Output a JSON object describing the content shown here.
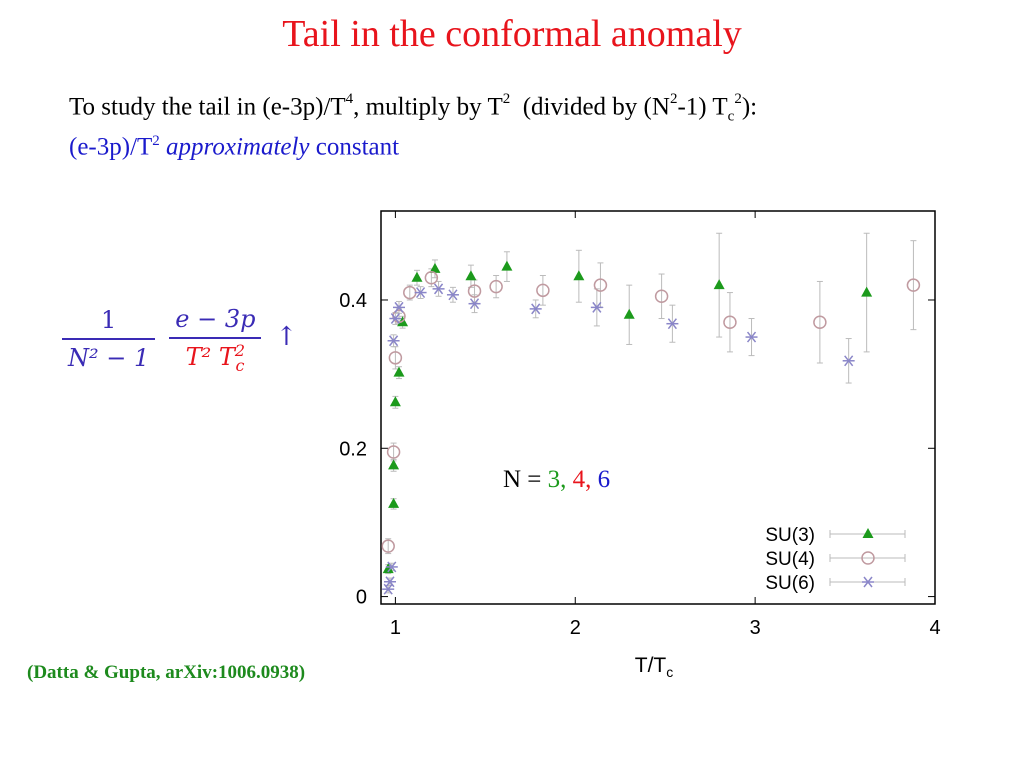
{
  "slide": {
    "title": "Tail in the conformal anomaly",
    "line1": {
      "part1": "To study the tail in (e-3p)/T",
      "sup_a": "4",
      "part2": ", multiply by T",
      "sup_b": "2",
      "part3": "  (divided by (N",
      "sup_c": "2",
      "part4": "-1) T",
      "sub_d": "c",
      "sup_e": "2",
      "part5": "):"
    },
    "line2": {
      "part1": "(e-3p)/T",
      "sup": "2",
      "italic": "approximately",
      "part2": " constant"
    },
    "formula": {
      "num_left": "1",
      "den_left": "N² − 1",
      "num_right": "e − 3p",
      "den_right": "T² T",
      "den_right_sub": "c",
      "den_right_sup": "2",
      "arrow": "↑"
    },
    "citation": "(Datta & Gupta, arXiv:1006.0938)"
  },
  "chart_data": {
    "type": "scatter",
    "xlabel": "T/T",
    "xlabel_sub": "c",
    "ylabel": "",
    "xlim": [
      0.92,
      4.0
    ],
    "ylim": [
      -0.01,
      0.52
    ],
    "x_ticks": [
      {
        "value": 1,
        "label": "1"
      },
      {
        "value": 2,
        "label": "2"
      },
      {
        "value": 3,
        "label": "3"
      },
      {
        "value": 4,
        "label": "4"
      }
    ],
    "y_ticks": [
      {
        "value": 0,
        "label": "0"
      },
      {
        "value": 0.2,
        "label": "0.2"
      },
      {
        "value": 0.4,
        "label": "0.4"
      }
    ],
    "annotation": {
      "prefix": "N = ",
      "n3": "3",
      "sep1": ", ",
      "n4": "4",
      "sep2": ", ",
      "n6": "6"
    },
    "colors": {
      "su3": "#1c9a1c",
      "su4": "#c09aa0",
      "su6": "#8a86c8",
      "error": "#bbbbbb",
      "n3": "#1c9a1c",
      "n4": "#e8141c",
      "n6": "#1a1acc"
    },
    "legend_position": "bottom-right",
    "series": [
      {
        "name": "SU(3)",
        "marker": "triangle",
        "points": [
          {
            "x": 0.96,
            "y": 0.037,
            "err": 0.006
          },
          {
            "x": 0.99,
            "y": 0.125,
            "err": 0.007
          },
          {
            "x": 0.99,
            "y": 0.177,
            "err": 0.008
          },
          {
            "x": 1.0,
            "y": 0.262,
            "err": 0.008
          },
          {
            "x": 1.02,
            "y": 0.302,
            "err": 0.008
          },
          {
            "x": 1.04,
            "y": 0.37,
            "err": 0.008
          },
          {
            "x": 1.12,
            "y": 0.43,
            "err": 0.01
          },
          {
            "x": 1.22,
            "y": 0.442,
            "err": 0.012
          },
          {
            "x": 1.42,
            "y": 0.432,
            "err": 0.015
          },
          {
            "x": 1.62,
            "y": 0.445,
            "err": 0.02
          },
          {
            "x": 2.02,
            "y": 0.432,
            "err": 0.035
          },
          {
            "x": 2.3,
            "y": 0.38,
            "err": 0.04
          },
          {
            "x": 2.8,
            "y": 0.42,
            "err": 0.07
          },
          {
            "x": 3.62,
            "y": 0.41,
            "err": 0.08
          }
        ]
      },
      {
        "name": "SU(4)",
        "marker": "circle",
        "points": [
          {
            "x": 0.96,
            "y": 0.068,
            "err": 0.01
          },
          {
            "x": 0.99,
            "y": 0.195,
            "err": 0.012
          },
          {
            "x": 1.0,
            "y": 0.322,
            "err": 0.015
          },
          {
            "x": 1.02,
            "y": 0.378,
            "err": 0.01
          },
          {
            "x": 1.08,
            "y": 0.41,
            "err": 0.01
          },
          {
            "x": 1.2,
            "y": 0.43,
            "err": 0.012
          },
          {
            "x": 1.44,
            "y": 0.412,
            "err": 0.015
          },
          {
            "x": 1.56,
            "y": 0.418,
            "err": 0.015
          },
          {
            "x": 1.82,
            "y": 0.413,
            "err": 0.02
          },
          {
            "x": 2.14,
            "y": 0.42,
            "err": 0.03
          },
          {
            "x": 2.48,
            "y": 0.405,
            "err": 0.03
          },
          {
            "x": 2.86,
            "y": 0.37,
            "err": 0.04
          },
          {
            "x": 3.36,
            "y": 0.37,
            "err": 0.055
          },
          {
            "x": 3.88,
            "y": 0.42,
            "err": 0.06
          }
        ]
      },
      {
        "name": "SU(6)",
        "marker": "asterisk",
        "points": [
          {
            "x": 0.96,
            "y": 0.01,
            "err": 0.005
          },
          {
            "x": 0.97,
            "y": 0.02,
            "err": 0.005
          },
          {
            "x": 0.98,
            "y": 0.04,
            "err": 0.005
          },
          {
            "x": 0.99,
            "y": 0.345,
            "err": 0.008
          },
          {
            "x": 1.0,
            "y": 0.375,
            "err": 0.008
          },
          {
            "x": 1.02,
            "y": 0.39,
            "err": 0.008
          },
          {
            "x": 1.14,
            "y": 0.41,
            "err": 0.008
          },
          {
            "x": 1.24,
            "y": 0.415,
            "err": 0.01
          },
          {
            "x": 1.32,
            "y": 0.407,
            "err": 0.01
          },
          {
            "x": 1.44,
            "y": 0.395,
            "err": 0.012
          },
          {
            "x": 1.78,
            "y": 0.388,
            "err": 0.012
          },
          {
            "x": 2.12,
            "y": 0.39,
            "err": 0.025
          },
          {
            "x": 2.54,
            "y": 0.368,
            "err": 0.025
          },
          {
            "x": 2.98,
            "y": 0.35,
            "err": 0.025
          },
          {
            "x": 3.52,
            "y": 0.318,
            "err": 0.03
          }
        ]
      }
    ]
  }
}
